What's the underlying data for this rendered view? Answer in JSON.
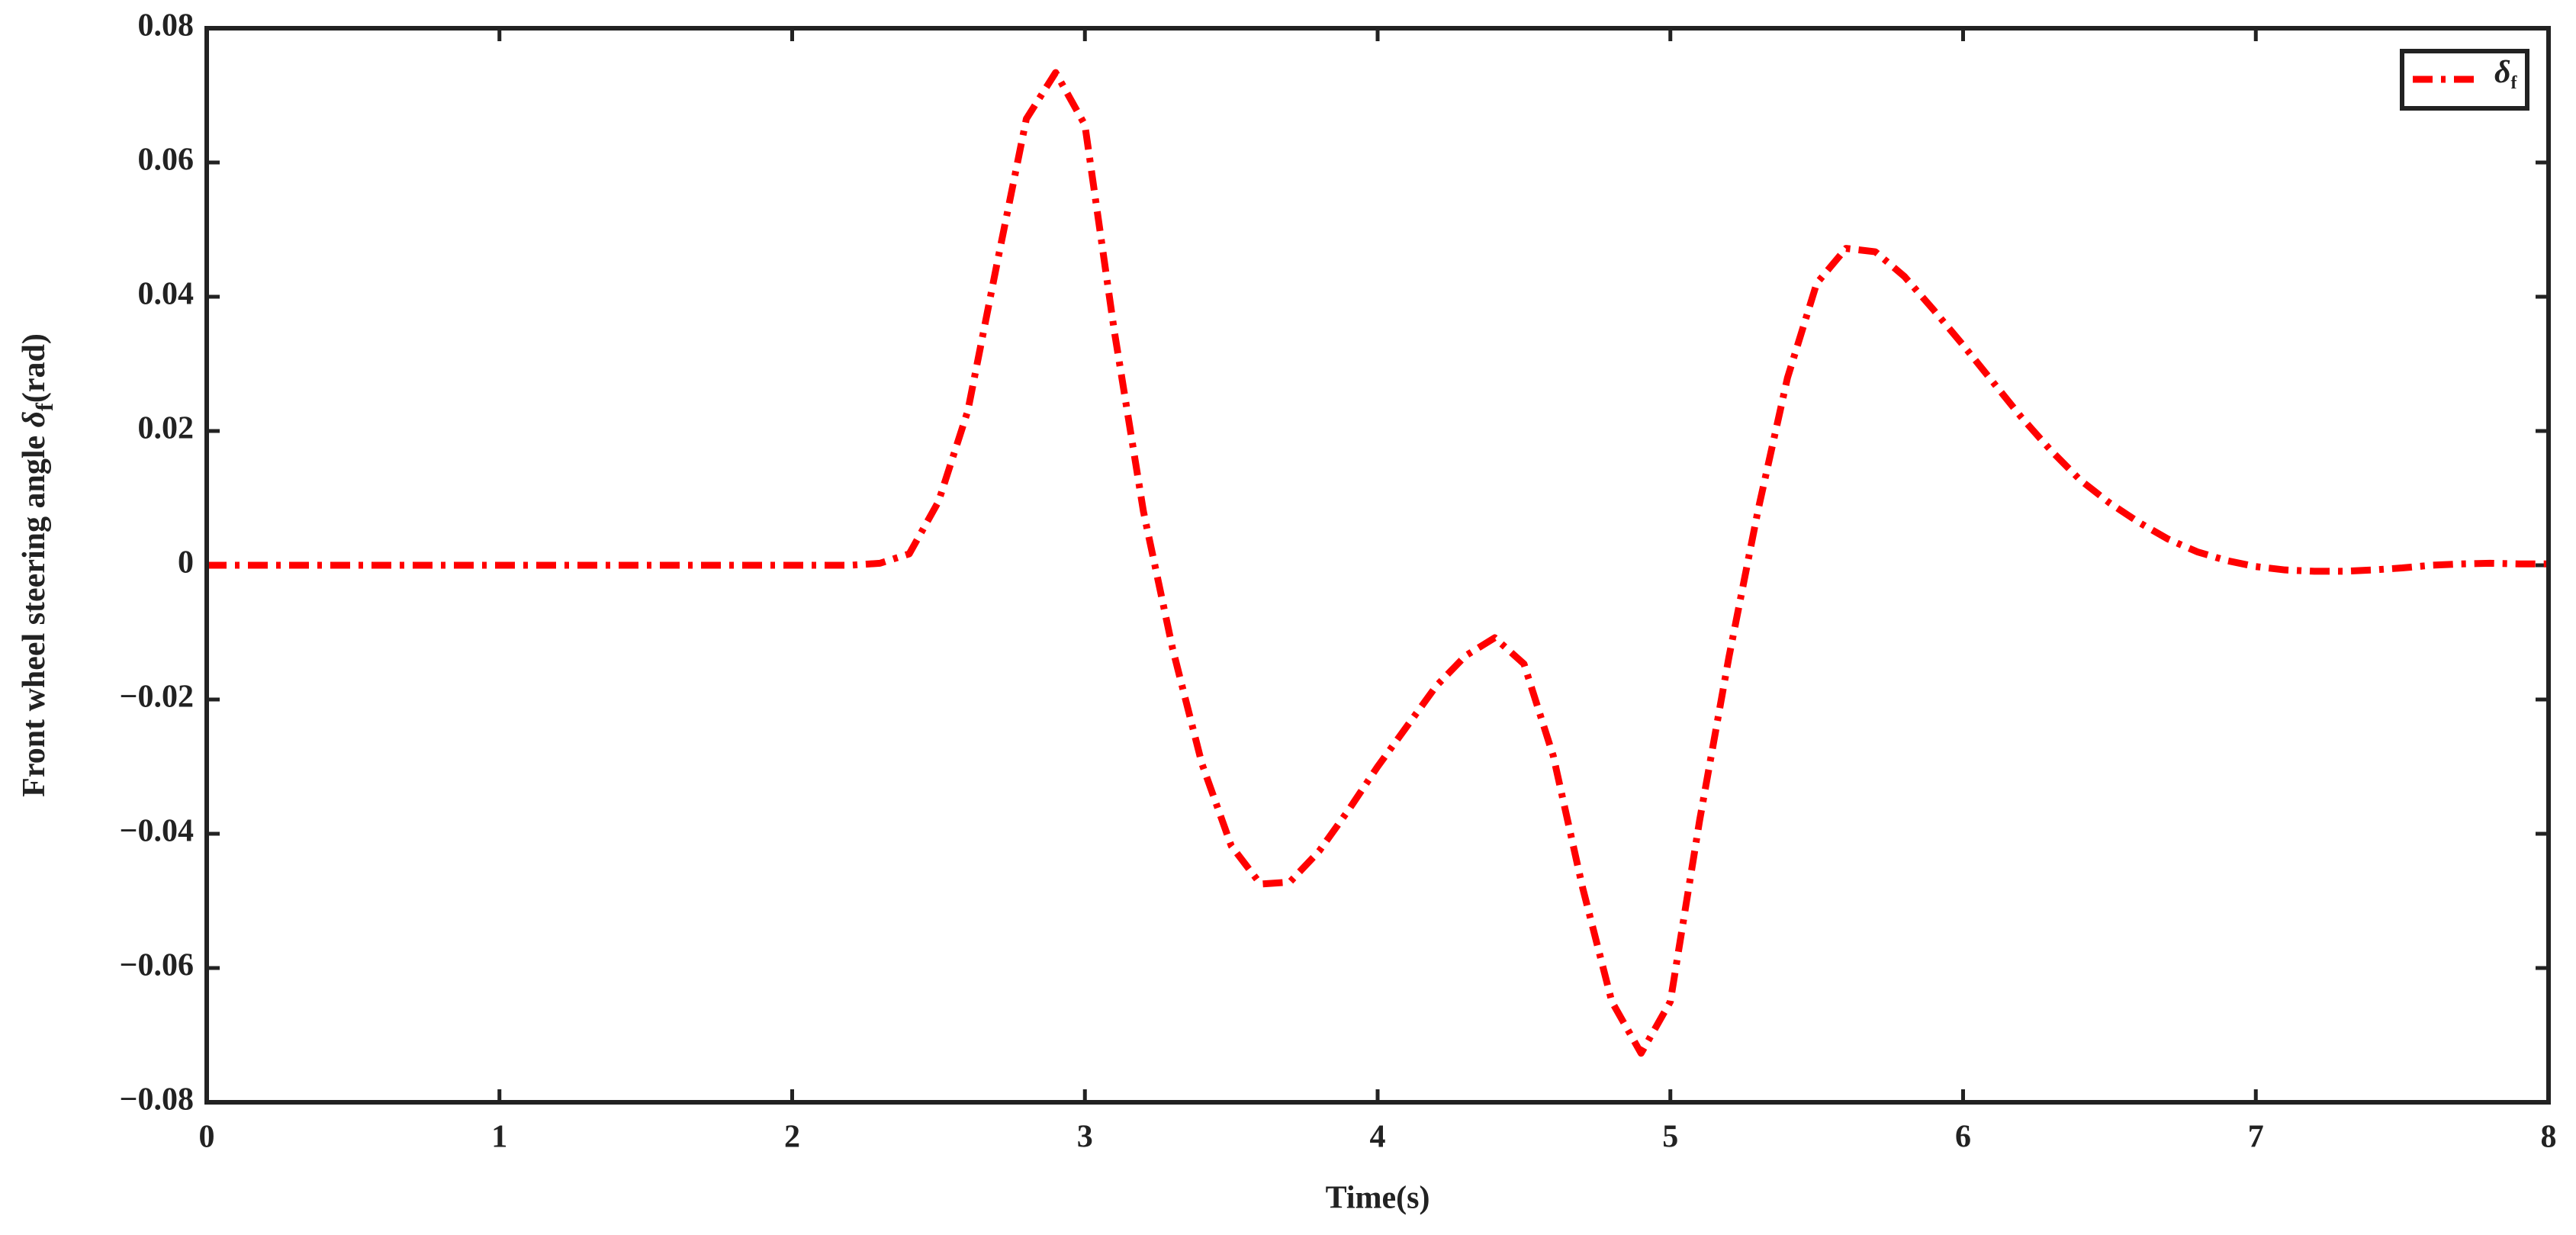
{
  "chart_data": {
    "type": "line",
    "x_label": "Time(s)",
    "y_label": [
      "Front wheel steering angle ",
      "δ",
      "f",
      "(rad)"
    ],
    "x": [
      0,
      0.1,
      0.2,
      0.3,
      0.4,
      0.5,
      0.6,
      0.7,
      0.8,
      0.9,
      1,
      1.1,
      1.2,
      1.3,
      1.4,
      1.5,
      1.6,
      1.7,
      1.8,
      1.9,
      2,
      2.1,
      2.2,
      2.3,
      2.4,
      2.5,
      2.6,
      2.7,
      2.8,
      2.9,
      3,
      3.1,
      3.2,
      3.3,
      3.4,
      3.5,
      3.6,
      3.7,
      3.8,
      3.9,
      4,
      4.1,
      4.2,
      4.3,
      4.4,
      4.5,
      4.6,
      4.7,
      4.8,
      4.9,
      5,
      5.1,
      5.2,
      5.3,
      5.4,
      5.5,
      5.6,
      5.7,
      5.8,
      5.9,
      6,
      6.1,
      6.2,
      6.3,
      6.4,
      6.5,
      6.6,
      6.7,
      6.8,
      6.9,
      7,
      7.1,
      7.2,
      7.3,
      7.4,
      7.5,
      7.6,
      7.7,
      7.8,
      7.9,
      8
    ],
    "series": [
      {
        "name": "δf",
        "color": "#ff0000",
        "values": [
          0,
          0,
          0,
          0,
          0,
          0,
          0,
          0,
          0,
          0,
          0,
          0,
          0,
          0,
          0,
          0,
          0,
          0,
          0,
          0,
          0,
          0,
          0,
          0.0003,
          0.0017,
          0.0095,
          0.023,
          0.045,
          0.0665,
          0.0734,
          0.0656,
          0.035,
          0.008,
          -0.0125,
          -0.0296,
          -0.0418,
          -0.0475,
          -0.0472,
          -0.0426,
          -0.0365,
          -0.03,
          -0.024,
          -0.018,
          -0.0135,
          -0.0108,
          -0.0147,
          -0.0284,
          -0.048,
          -0.065,
          -0.0727,
          -0.065,
          -0.038,
          -0.0137,
          0.0083,
          0.0279,
          0.042,
          0.0472,
          0.0467,
          0.043,
          0.038,
          0.0328,
          0.0274,
          0.022,
          0.0171,
          0.0127,
          0.0093,
          0.0064,
          0.0039,
          0.002,
          0.0007,
          -0.0002,
          -0.0007,
          -0.0009,
          -0.0009,
          -0.0007,
          -0.0004,
          0,
          0.0002,
          0.0003,
          0.0002,
          0.0002
        ]
      }
    ],
    "xlim": [
      0,
      8
    ],
    "xticks": [
      0,
      1,
      2,
      3,
      4,
      5,
      6,
      7,
      8
    ],
    "ylim": [
      -0.08,
      0.08
    ],
    "yticks": [
      {
        "value": -0.08,
        "label": "−0.08"
      },
      {
        "value": -0.06,
        "label": "−0.06"
      },
      {
        "value": -0.04,
        "label": "−0.04"
      },
      {
        "value": -0.02,
        "label": "−0.02"
      },
      0,
      0.02,
      0.04,
      0.06,
      0.08
    ],
    "legend": "northeast"
  }
}
